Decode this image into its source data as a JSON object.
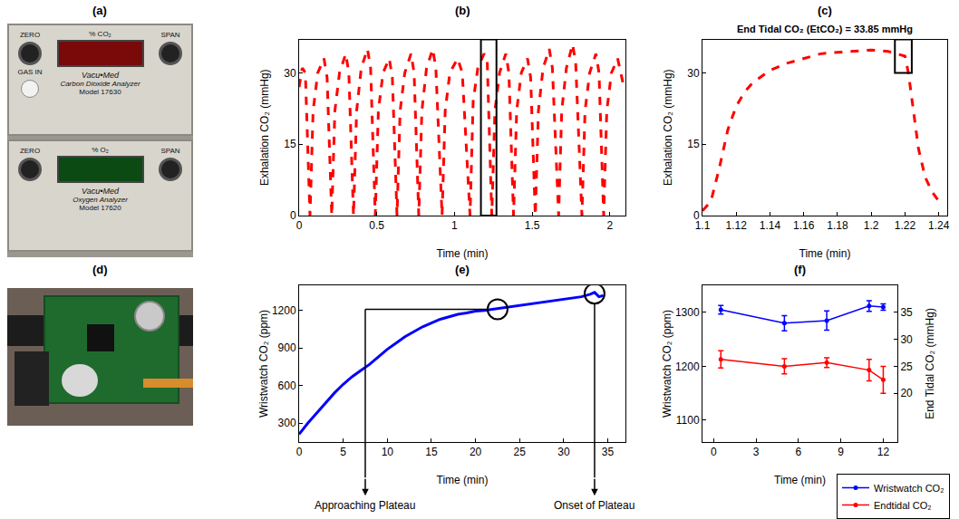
{
  "panels": [
    {
      "label": "(a)",
      "units": [
        {
          "display": "% CO₂",
          "color": "#7a0a0a",
          "name": "Carbon Dioxide Analyzer",
          "model": "Model 17630",
          "brand": "Vacu•Med",
          "knobs": [
            "ZERO",
            "SPAN"
          ],
          "port": "GAS IN"
        },
        {
          "display": "% O₂",
          "color": "#0b4a12",
          "name": "Oxygen Analyzer",
          "model": "Model 17620",
          "brand": "Vacu•Med",
          "knobs": [
            "ZERO",
            "SPAN"
          ]
        }
      ]
    },
    {
      "label": "(d)"
    }
  ],
  "chart_data": [
    {
      "type": "line",
      "title": "(b)",
      "x_label": "Time (min)",
      "y_label": "Exhalation CO₂ (mmHg)",
      "x": [
        0,
        0.02,
        0.04,
        0.07,
        0.09,
        0.12,
        0.16,
        0.18,
        0.21,
        0.23,
        0.26,
        0.3,
        0.32,
        0.35,
        0.37,
        0.4,
        0.44,
        0.46,
        0.49,
        0.51,
        0.54,
        0.58,
        0.6,
        0.63,
        0.65,
        0.68,
        0.72,
        0.74,
        0.77,
        0.79,
        0.82,
        0.86,
        0.88,
        0.92,
        0.94,
        0.97,
        1.02,
        1.05,
        1.1,
        1.12,
        1.15,
        1.19,
        1.21,
        1.24,
        1.26,
        1.29,
        1.33,
        1.35,
        1.38,
        1.4,
        1.43,
        1.47,
        1.49,
        1.52,
        1.54,
        1.57,
        1.61,
        1.63,
        1.67,
        1.69,
        1.72,
        1.76,
        1.78,
        1.82,
        1.84,
        1.87,
        1.91,
        1.93,
        1.96,
        1.98,
        2.01,
        2.05,
        2.07,
        2.09
      ],
      "values": [
        27,
        31,
        30,
        0,
        22,
        30,
        33,
        29,
        0,
        22,
        30,
        34,
        30,
        0,
        22,
        31,
        35,
        31,
        0,
        22,
        30,
        33,
        29,
        0,
        22,
        30,
        34,
        30,
        0,
        22,
        31,
        35,
        31,
        0,
        22,
        30,
        33,
        30,
        0,
        24,
        31,
        34,
        33,
        0,
        22,
        30,
        34,
        30,
        0,
        22,
        30,
        33,
        29,
        0,
        22,
        31,
        35,
        31,
        0,
        22,
        31,
        36,
        32,
        0,
        22,
        30,
        34,
        30,
        0,
        22,
        30,
        33,
        30,
        27
      ],
      "color": "#ff0000",
      "line_style": "dashed",
      "xlim": [
        0,
        2.1
      ],
      "ylim": [
        0,
        37
      ],
      "xticks": [
        0,
        0.5,
        1,
        1.5,
        2
      ],
      "yticks": [
        0,
        15,
        30
      ],
      "grid": false,
      "annotations": [
        {
          "shape": "rect",
          "x0": 1.17,
          "x1": 1.27,
          "y0": 0,
          "y1": 37
        }
      ]
    },
    {
      "type": "line",
      "title": "(c)",
      "x_label": "Time (min)",
      "y_label": "Exhalation CO₂ (mmHg)",
      "x": [
        1.1,
        1.105,
        1.11,
        1.115,
        1.12,
        1.125,
        1.13,
        1.14,
        1.15,
        1.16,
        1.17,
        1.18,
        1.19,
        1.2,
        1.21,
        1.215,
        1.22,
        1.222,
        1.225,
        1.228,
        1.232,
        1.236,
        1.24,
        1.242
      ],
      "values": [
        1,
        3,
        10,
        18,
        23,
        26,
        28,
        30.5,
        32,
        33,
        34,
        34.3,
        34.6,
        34.8,
        34.5,
        34,
        33.5,
        30,
        22,
        14,
        8,
        5,
        3,
        2.5
      ],
      "color": "#ff0000",
      "line_style": "dashed",
      "xlim": [
        1.1,
        1.245
      ],
      "ylim": [
        0,
        37
      ],
      "xticks": [
        1.1,
        1.12,
        1.14,
        1.16,
        1.18,
        1.2,
        1.22,
        1.24
      ],
      "yticks": [
        0,
        15,
        30
      ],
      "grid": false,
      "annotations": [
        {
          "text": "End Tidal CO₂ (EtCO₂) = 33.85 mmHg"
        },
        {
          "shape": "rect",
          "x0": 1.214,
          "x1": 1.224,
          "y0": 30,
          "y1": 37
        }
      ]
    },
    {
      "type": "line",
      "title": "(e)",
      "x_label": "Time (min)",
      "y_label": "Wristwatch CO₂ (ppm)",
      "x": [
        0,
        1,
        2,
        3,
        4,
        5,
        6,
        7,
        8,
        9,
        10,
        11,
        12,
        13,
        14,
        15,
        16,
        17,
        18,
        19,
        20,
        21,
        22,
        23,
        24,
        25,
        26,
        27,
        28,
        29,
        30,
        31,
        32,
        33,
        33.5,
        34,
        34.5
      ],
      "values": [
        210,
        300,
        380,
        460,
        540,
        610,
        670,
        720,
        770,
        830,
        890,
        940,
        990,
        1030,
        1070,
        1100,
        1130,
        1150,
        1170,
        1180,
        1195,
        1200,
        1210,
        1225,
        1235,
        1245,
        1255,
        1265,
        1270,
        1280,
        1290,
        1300,
        1310,
        1330,
        1345,
        1310,
        1320
      ],
      "color": "#0000ff",
      "line_style": "solid",
      "xlim": [
        0,
        37
      ],
      "ylim": [
        150,
        1400
      ],
      "xticks": [
        0,
        5,
        10,
        15,
        20,
        25,
        30,
        35
      ],
      "yticks": [
        300,
        600,
        900,
        1200
      ],
      "grid": false,
      "annotations": [
        {
          "text": "Approaching Plateau",
          "x": 22.5,
          "y": 1210,
          "label_x": 7.5,
          "marker": "circle-open"
        },
        {
          "text": "Onset of Plateau",
          "x": 33.5,
          "y": 1335,
          "label_x": 33.5,
          "marker": "circle-open"
        }
      ]
    },
    {
      "type": "line",
      "title": "(f)",
      "x_label": "Time (min)",
      "y_label": "Wristwatch CO₂ (ppm)",
      "y2_label": "End Tidal CO₂ (mmHg)",
      "x": [
        0.5,
        5,
        8,
        11,
        12
      ],
      "series": [
        {
          "name": "Wristwatch CO₂",
          "color": "#0000ff",
          "marker": "circle",
          "values": [
            1305,
            1280,
            1285,
            1312,
            1310
          ],
          "error": [
            8,
            14,
            18,
            10,
            6
          ]
        },
        {
          "name": "Endtidal CO₂",
          "color": "#ff0000",
          "marker": "circle",
          "axis": "y2",
          "values": [
            26.3,
            25.0,
            25.7,
            24.3,
            22.5
          ],
          "error": [
            1.6,
            1.4,
            0.9,
            2.0,
            2.5
          ]
        }
      ],
      "xlim": [
        -0.8,
        13
      ],
      "ylim": [
        1060,
        1350
      ],
      "y2lim": [
        11,
        40
      ],
      "xticks": [
        0,
        3,
        6,
        9,
        12
      ],
      "yticks": [
        1100,
        1200,
        1300
      ],
      "y2ticks": [
        20,
        25,
        30,
        35
      ],
      "grid": false,
      "legend": "bottom right"
    }
  ]
}
